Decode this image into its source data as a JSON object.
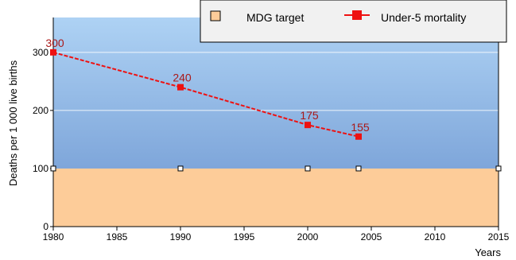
{
  "chart_data": {
    "type": "line",
    "title": "",
    "xlabel": "Years",
    "ylabel": "Deaths per 1 000 live births",
    "xlim": [
      1980,
      2015
    ],
    "ylim": [
      0,
      360
    ],
    "x_ticks": [
      1980,
      1985,
      1990,
      1995,
      2000,
      2005,
      2010,
      2015
    ],
    "y_ticks": [
      0,
      100,
      200,
      300
    ],
    "grid": true,
    "legend_position": "top-right",
    "series": [
      {
        "name": "MDG target",
        "color": "#fdcc99",
        "marker": "hollow-square",
        "fill_below": 100,
        "x": [
          1980,
          1990,
          2000,
          2004,
          2015
        ],
        "values": [
          100,
          100,
          100,
          100,
          100
        ]
      },
      {
        "name": "Under-5 mortality",
        "color": "#ee1111",
        "marker": "filled-square",
        "x": [
          1980,
          1990,
          2000,
          2004
        ],
        "values": [
          300,
          240,
          175,
          155
        ],
        "data_labels": [
          "300",
          "240",
          "175",
          "155"
        ]
      }
    ],
    "colors": {
      "background_top": "#aed2f4",
      "background_bottom": "#6c95d0",
      "target_zone": "#fdcc99",
      "gridline": "#ffffff",
      "label_color": "#aa1818"
    }
  }
}
